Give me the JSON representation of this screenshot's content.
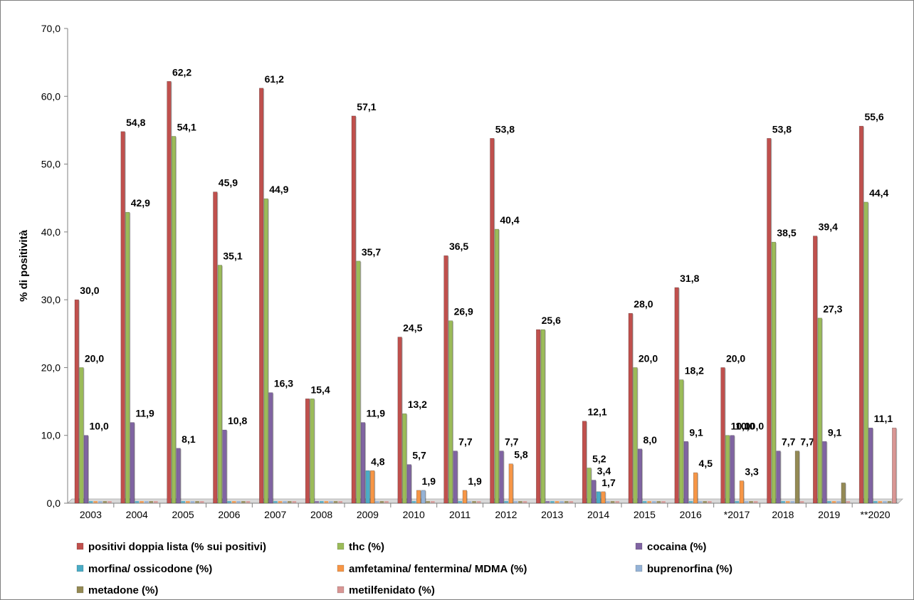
{
  "chart_data": {
    "type": "bar",
    "ylabel": "% di positività",
    "xlabel": "",
    "title": "",
    "ylim": [
      0,
      70
    ],
    "ytick_step": 10,
    "y_tick_labels": [
      "0,0",
      "10,0",
      "20,0",
      "30,0",
      "40,0",
      "50,0",
      "60,0",
      "70,0"
    ],
    "grid": false,
    "legend_position": "bottom",
    "categories": [
      "2003",
      "2004",
      "2005",
      "2006",
      "2007",
      "2008",
      "2009",
      "2010",
      "2011",
      "2012",
      "2013",
      "2014",
      "2015",
      "2016",
      "*2017",
      "2018",
      "2019",
      "**2020"
    ],
    "series": [
      {
        "name": "positivi doppia lista (% sui positivi)",
        "color": "#c0504d",
        "values": [
          30.0,
          54.8,
          62.2,
          45.9,
          61.2,
          15.4,
          57.1,
          24.5,
          36.5,
          53.8,
          25.6,
          12.1,
          28.0,
          31.8,
          20.0,
          53.8,
          39.4,
          55.6
        ],
        "labels": [
          "30,0",
          "54,8",
          "62,2",
          "45,9",
          "61,2",
          "15,4",
          "57,1",
          "24,5",
          "36,5",
          "53,8",
          "25,6",
          "12,1",
          "28,0",
          "31,8",
          "20,0",
          "53,8",
          "39,4",
          "55,6"
        ]
      },
      {
        "name": "thc (%)",
        "color": "#9bbb59",
        "values": [
          20.0,
          42.9,
          54.1,
          35.1,
          44.9,
          15.4,
          35.7,
          13.2,
          26.9,
          40.4,
          25.6,
          5.2,
          20.0,
          18.2,
          10.0,
          38.5,
          27.3,
          44.4
        ],
        "labels": [
          "20,0",
          "42,9",
          "54,1",
          "35,1",
          "44,9",
          "",
          "35,7",
          "13,2",
          "26,9",
          "40,4",
          "",
          "5,2",
          "20,0",
          "18,2",
          "10,0",
          "38,5",
          "27,3",
          "44,4"
        ]
      },
      {
        "name": "cocaina (%)",
        "color": "#8064a2",
        "values": [
          10.0,
          11.9,
          8.1,
          10.8,
          16.3,
          0,
          11.9,
          5.7,
          7.7,
          7.7,
          0,
          3.4,
          8.0,
          9.1,
          10.0,
          7.7,
          9.1,
          11.1
        ],
        "labels": [
          "10,0",
          "11,9",
          "8,1",
          "10,8",
          "16,3",
          "",
          "11,9",
          "5,7",
          "7,7",
          "7,7",
          "",
          "3,4",
          "8,0",
          "9,1",
          "10,0",
          "7,7",
          "9,1",
          "11,1"
        ]
      },
      {
        "name": "morfina/ ossicodone (%)",
        "color": "#4bacc6",
        "values": [
          0,
          0,
          0,
          0,
          0,
          0,
          4.8,
          0,
          0,
          0,
          0,
          1.7,
          0,
          0,
          0,
          0,
          0,
          0
        ],
        "labels": [
          "",
          "",
          "",
          "",
          "",
          "",
          "4,8",
          "",
          "",
          "",
          "",
          "1,7",
          "",
          "",
          "",
          "",
          "",
          ""
        ]
      },
      {
        "name": "amfetamina/ fentermina/ MDMA (%)",
        "color": "#f79646",
        "values": [
          0,
          0,
          0,
          0,
          0,
          0,
          4.8,
          1.9,
          1.9,
          5.8,
          0,
          1.7,
          0,
          4.5,
          3.3,
          0,
          0,
          0
        ],
        "labels": [
          "",
          "",
          "",
          "",
          "",
          "",
          "",
          "1,9",
          "1,9",
          "5,8",
          "",
          "",
          "",
          "4,5",
          "3,3",
          "",
          "",
          ""
        ]
      },
      {
        "name": "buprenorfina (%)",
        "color": "#95b3d7",
        "values": [
          0,
          0,
          0,
          0,
          0,
          0,
          0,
          1.9,
          0,
          0,
          0,
          0,
          0,
          0,
          0,
          0,
          0,
          0
        ],
        "labels": [
          "",
          "",
          "",
          "",
          "",
          "",
          "",
          "",
          "",
          "",
          "",
          "",
          "",
          "",
          "",
          "",
          "",
          ""
        ]
      },
      {
        "name": "metadone (%)",
        "color": "#948a54",
        "values": [
          0,
          0,
          0,
          0,
          0,
          0,
          0,
          0,
          0,
          0,
          0,
          0,
          0,
          0,
          0,
          7.7,
          3.0,
          0
        ],
        "labels": [
          "",
          "",
          "",
          "",
          "",
          "",
          "",
          "",
          "",
          "",
          "",
          "",
          "",
          "",
          "",
          "7,7",
          "",
          ""
        ]
      },
      {
        "name": "metilfenidato (%)",
        "color": "#d99694",
        "values": [
          0,
          0,
          0,
          0,
          0,
          0,
          0,
          0,
          0,
          0,
          0,
          0,
          0,
          0,
          0,
          0,
          0,
          11.1
        ],
        "labels": [
          "",
          "",
          "",
          "",
          "",
          "",
          "",
          "",
          "",
          "",
          "",
          "",
          "",
          "",
          "",
          "",
          "",
          ""
        ]
      }
    ],
    "extra_labels": [
      {
        "category": "2018",
        "text": "10,0"
      }
    ]
  }
}
